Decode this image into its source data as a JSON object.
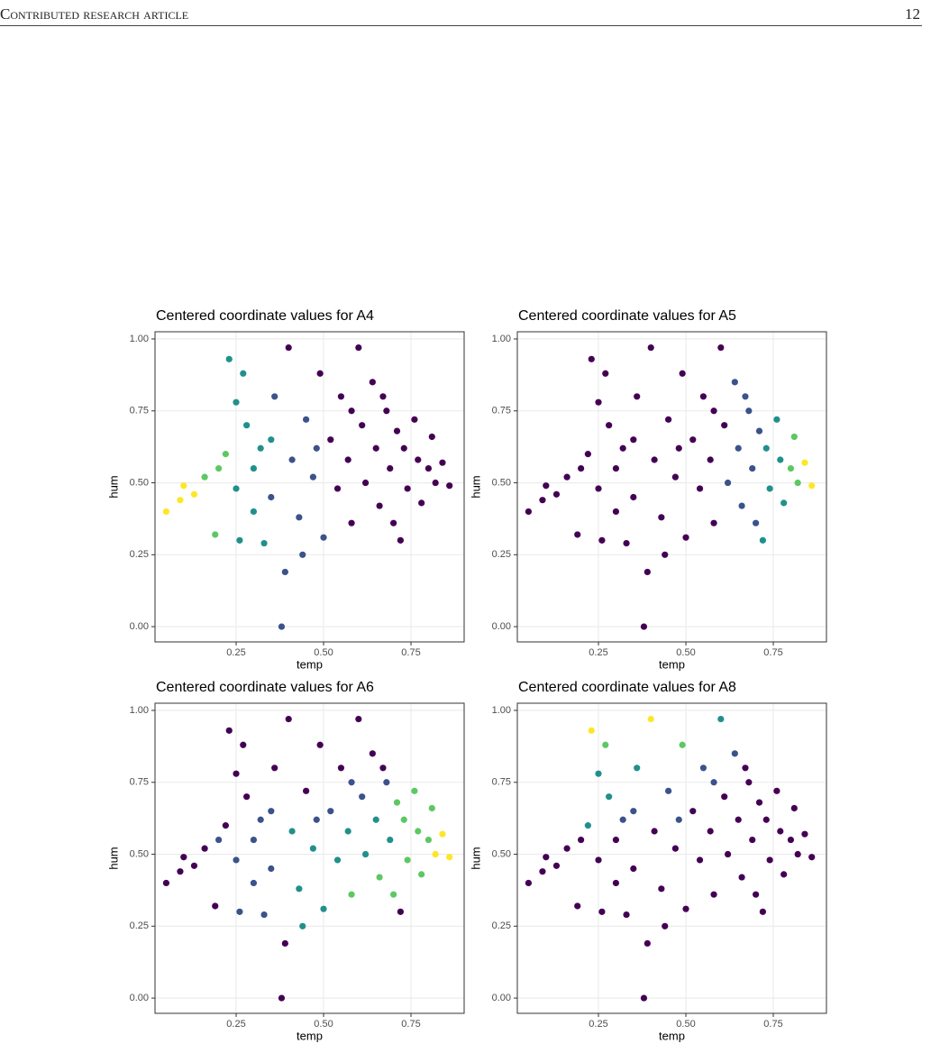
{
  "header": {
    "section": "Contributed research article",
    "page": "12"
  },
  "chart_data": [
    {
      "type": "scatter",
      "title": "Centered coordinate values for A4",
      "x_label": "temp",
      "y_label": "hum",
      "x": [
        0.05,
        0.09,
        0.1,
        0.13,
        0.16,
        0.19,
        0.2,
        0.22,
        0.23,
        0.25,
        0.26,
        0.27,
        0.28,
        0.3,
        0.32,
        0.33,
        0.35,
        0.36,
        0.38,
        0.39,
        0.4,
        0.41,
        0.43,
        0.44,
        0.45,
        0.47,
        0.49,
        0.5,
        0.52,
        0.54,
        0.55,
        0.57,
        0.58,
        0.6,
        0.61,
        0.62,
        0.64,
        0.65,
        0.66,
        0.68,
        0.69,
        0.7,
        0.71,
        0.72,
        0.73,
        0.74,
        0.76,
        0.77,
        0.78,
        0.8,
        0.81,
        0.82,
        0.84,
        0.86,
        0.35,
        0.3,
        0.58,
        0.48,
        0.67,
        0.25
      ],
      "values": [
        0.4,
        0.44,
        0.49,
        0.46,
        0.52,
        0.32,
        0.55,
        0.6,
        0.93,
        0.48,
        0.3,
        0.88,
        0.7,
        0.55,
        0.62,
        0.29,
        0.45,
        0.8,
        0.0,
        0.19,
        0.97,
        0.58,
        0.38,
        0.25,
        0.72,
        0.52,
        0.88,
        0.31,
        0.65,
        0.48,
        0.8,
        0.58,
        0.36,
        0.97,
        0.7,
        0.5,
        0.85,
        0.62,
        0.42,
        0.75,
        0.55,
        0.36,
        0.68,
        0.3,
        0.62,
        0.48,
        0.72,
        0.58,
        0.43,
        0.55,
        0.66,
        0.5,
        0.57,
        0.49,
        0.65,
        0.4,
        0.75,
        0.62,
        0.8,
        0.78
      ],
      "colors": [
        "#fde725",
        "#fde725",
        "#fde725",
        "#fde725",
        "#5dc863",
        "#5dc863",
        "#5dc863",
        "#5dc863",
        "#21908c",
        "#21908c",
        "#21908c",
        "#21908c",
        "#21908c",
        "#21908c",
        "#21908c",
        "#21908c",
        "#3b528b",
        "#3b528b",
        "#3b528b",
        "#3b528b",
        "#440154",
        "#3b528b",
        "#3b528b",
        "#3b528b",
        "#3b528b",
        "#3b528b",
        "#440154",
        "#3b528b",
        "#440154",
        "#440154",
        "#440154",
        "#440154",
        "#440154",
        "#440154",
        "#440154",
        "#440154",
        "#440154",
        "#440154",
        "#440154",
        "#440154",
        "#440154",
        "#440154",
        "#440154",
        "#440154",
        "#440154",
        "#440154",
        "#440154",
        "#440154",
        "#440154",
        "#440154",
        "#440154",
        "#440154",
        "#440154",
        "#440154",
        "#21908c",
        "#21908c",
        "#440154",
        "#3b528b",
        "#440154",
        "#21908c"
      ],
      "xlim": [
        0.018,
        0.902
      ],
      "ylim": [
        -0.053,
        1.025
      ],
      "xticks": [
        {
          "value": 0.25,
          "label": "0.25"
        },
        {
          "value": 0.5,
          "label": "0.50"
        },
        {
          "value": 0.75,
          "label": "0.75"
        }
      ],
      "yticks": [
        {
          "value": 0,
          "label": "0.00"
        },
        {
          "value": 0.25,
          "label": "0.25"
        },
        {
          "value": 0.5,
          "label": "0.50"
        },
        {
          "value": 0.75,
          "label": "0.75"
        },
        {
          "value": 1,
          "label": "1.00"
        }
      ],
      "grid": true
    },
    {
      "type": "scatter",
      "title": "Centered coordinate values for A5",
      "x_label": "temp",
      "y_label": "hum",
      "x": [
        0.05,
        0.09,
        0.1,
        0.13,
        0.16,
        0.19,
        0.2,
        0.22,
        0.23,
        0.25,
        0.26,
        0.27,
        0.28,
        0.3,
        0.32,
        0.33,
        0.35,
        0.36,
        0.38,
        0.39,
        0.4,
        0.41,
        0.43,
        0.44,
        0.45,
        0.47,
        0.49,
        0.5,
        0.52,
        0.54,
        0.55,
        0.57,
        0.58,
        0.6,
        0.61,
        0.62,
        0.64,
        0.65,
        0.66,
        0.68,
        0.69,
        0.7,
        0.71,
        0.72,
        0.73,
        0.74,
        0.76,
        0.77,
        0.78,
        0.8,
        0.81,
        0.82,
        0.84,
        0.86,
        0.35,
        0.3,
        0.58,
        0.48,
        0.67,
        0.25
      ],
      "values": [
        0.4,
        0.44,
        0.49,
        0.46,
        0.52,
        0.32,
        0.55,
        0.6,
        0.93,
        0.48,
        0.3,
        0.88,
        0.7,
        0.55,
        0.62,
        0.29,
        0.45,
        0.8,
        0.0,
        0.19,
        0.97,
        0.58,
        0.38,
        0.25,
        0.72,
        0.52,
        0.88,
        0.31,
        0.65,
        0.48,
        0.8,
        0.58,
        0.36,
        0.97,
        0.7,
        0.5,
        0.85,
        0.62,
        0.42,
        0.75,
        0.55,
        0.36,
        0.68,
        0.3,
        0.62,
        0.48,
        0.72,
        0.58,
        0.43,
        0.55,
        0.66,
        0.5,
        0.57,
        0.49,
        0.65,
        0.4,
        0.75,
        0.62,
        0.8,
        0.78
      ],
      "colors": [
        "#440154",
        "#440154",
        "#440154",
        "#440154",
        "#440154",
        "#440154",
        "#440154",
        "#440154",
        "#440154",
        "#440154",
        "#440154",
        "#440154",
        "#440154",
        "#440154",
        "#440154",
        "#440154",
        "#440154",
        "#440154",
        "#440154",
        "#440154",
        "#440154",
        "#440154",
        "#440154",
        "#440154",
        "#440154",
        "#440154",
        "#440154",
        "#440154",
        "#440154",
        "#440154",
        "#440154",
        "#440154",
        "#440154",
        "#440154",
        "#440154",
        "#3b528b",
        "#3b528b",
        "#3b528b",
        "#3b528b",
        "#3b528b",
        "#3b528b",
        "#3b528b",
        "#3b528b",
        "#21908c",
        "#21908c",
        "#21908c",
        "#21908c",
        "#21908c",
        "#21908c",
        "#5dc863",
        "#5dc863",
        "#5dc863",
        "#fde725",
        "#fde725",
        "#440154",
        "#440154",
        "#440154",
        "#440154",
        "#3b528b",
        "#440154"
      ],
      "xlim": [
        0.018,
        0.902
      ],
      "ylim": [
        -0.053,
        1.025
      ],
      "xticks": [
        {
          "value": 0.25,
          "label": "0.25"
        },
        {
          "value": 0.5,
          "label": "0.50"
        },
        {
          "value": 0.75,
          "label": "0.75"
        }
      ],
      "yticks": [
        {
          "value": 0,
          "label": "0.00"
        },
        {
          "value": 0.25,
          "label": "0.25"
        },
        {
          "value": 0.5,
          "label": "0.50"
        },
        {
          "value": 0.75,
          "label": "0.75"
        },
        {
          "value": 1,
          "label": "1.00"
        }
      ],
      "grid": true
    },
    {
      "type": "scatter",
      "title": "Centered coordinate values for A6",
      "x_label": "temp",
      "y_label": "hum",
      "x": [
        0.05,
        0.09,
        0.1,
        0.13,
        0.16,
        0.19,
        0.2,
        0.22,
        0.23,
        0.25,
        0.26,
        0.27,
        0.28,
        0.3,
        0.32,
        0.33,
        0.35,
        0.36,
        0.38,
        0.39,
        0.4,
        0.41,
        0.43,
        0.44,
        0.45,
        0.47,
        0.49,
        0.5,
        0.52,
        0.54,
        0.55,
        0.57,
        0.58,
        0.6,
        0.61,
        0.62,
        0.64,
        0.65,
        0.66,
        0.68,
        0.69,
        0.7,
        0.71,
        0.72,
        0.73,
        0.74,
        0.76,
        0.77,
        0.78,
        0.8,
        0.81,
        0.82,
        0.84,
        0.86,
        0.35,
        0.3,
        0.58,
        0.48,
        0.67,
        0.25
      ],
      "values": [
        0.4,
        0.44,
        0.49,
        0.46,
        0.52,
        0.32,
        0.55,
        0.6,
        0.93,
        0.48,
        0.3,
        0.88,
        0.7,
        0.55,
        0.62,
        0.29,
        0.45,
        0.8,
        0.0,
        0.19,
        0.97,
        0.58,
        0.38,
        0.25,
        0.72,
        0.52,
        0.88,
        0.31,
        0.65,
        0.48,
        0.8,
        0.58,
        0.36,
        0.97,
        0.7,
        0.5,
        0.85,
        0.62,
        0.42,
        0.75,
        0.55,
        0.36,
        0.68,
        0.3,
        0.62,
        0.48,
        0.72,
        0.58,
        0.43,
        0.55,
        0.66,
        0.5,
        0.57,
        0.49,
        0.65,
        0.4,
        0.75,
        0.62,
        0.8,
        0.78
      ],
      "colors": [
        "#440154",
        "#440154",
        "#440154",
        "#440154",
        "#440154",
        "#440154",
        "#3b528b",
        "#440154",
        "#440154",
        "#3b528b",
        "#3b528b",
        "#440154",
        "#440154",
        "#3b528b",
        "#3b528b",
        "#3b528b",
        "#3b528b",
        "#440154",
        "#440154",
        "#440154",
        "#440154",
        "#21908c",
        "#21908c",
        "#21908c",
        "#440154",
        "#21908c",
        "#440154",
        "#21908c",
        "#3b528b",
        "#21908c",
        "#440154",
        "#21908c",
        "#5dc863",
        "#440154",
        "#3b528b",
        "#21908c",
        "#440154",
        "#21908c",
        "#5dc863",
        "#3b528b",
        "#21908c",
        "#5dc863",
        "#5dc863",
        "#440154",
        "#5dc863",
        "#5dc863",
        "#5dc863",
        "#5dc863",
        "#5dc863",
        "#5dc863",
        "#5dc863",
        "#fde725",
        "#fde725",
        "#fde725",
        "#3b528b",
        "#3b528b",
        "#3b528b",
        "#3b528b",
        "#440154",
        "#440154"
      ],
      "xlim": [
        0.018,
        0.902
      ],
      "ylim": [
        -0.053,
        1.025
      ],
      "xticks": [
        {
          "value": 0.25,
          "label": "0.25"
        },
        {
          "value": 0.5,
          "label": "0.50"
        },
        {
          "value": 0.75,
          "label": "0.75"
        }
      ],
      "yticks": [
        {
          "value": 0,
          "label": "0.00"
        },
        {
          "value": 0.25,
          "label": "0.25"
        },
        {
          "value": 0.5,
          "label": "0.50"
        },
        {
          "value": 0.75,
          "label": "0.75"
        },
        {
          "value": 1,
          "label": "1.00"
        }
      ],
      "grid": true
    },
    {
      "type": "scatter",
      "title": "Centered coordinate values for A8",
      "x_label": "temp",
      "y_label": "hum",
      "x": [
        0.05,
        0.09,
        0.1,
        0.13,
        0.16,
        0.19,
        0.2,
        0.22,
        0.23,
        0.25,
        0.26,
        0.27,
        0.28,
        0.3,
        0.32,
        0.33,
        0.35,
        0.36,
        0.38,
        0.39,
        0.4,
        0.41,
        0.43,
        0.44,
        0.45,
        0.47,
        0.49,
        0.5,
        0.52,
        0.54,
        0.55,
        0.57,
        0.58,
        0.6,
        0.61,
        0.62,
        0.64,
        0.65,
        0.66,
        0.68,
        0.69,
        0.7,
        0.71,
        0.72,
        0.73,
        0.74,
        0.76,
        0.77,
        0.78,
        0.8,
        0.81,
        0.82,
        0.84,
        0.86,
        0.35,
        0.3,
        0.58,
        0.48,
        0.67,
        0.25
      ],
      "values": [
        0.4,
        0.44,
        0.49,
        0.46,
        0.52,
        0.32,
        0.55,
        0.6,
        0.93,
        0.48,
        0.3,
        0.88,
        0.7,
        0.55,
        0.62,
        0.29,
        0.45,
        0.8,
        0.0,
        0.19,
        0.97,
        0.58,
        0.38,
        0.25,
        0.72,
        0.52,
        0.88,
        0.31,
        0.65,
        0.48,
        0.8,
        0.58,
        0.36,
        0.97,
        0.7,
        0.5,
        0.85,
        0.62,
        0.42,
        0.75,
        0.55,
        0.36,
        0.68,
        0.3,
        0.62,
        0.48,
        0.72,
        0.58,
        0.43,
        0.55,
        0.66,
        0.5,
        0.57,
        0.49,
        0.65,
        0.4,
        0.75,
        0.62,
        0.8,
        0.78
      ],
      "colors": [
        "#440154",
        "#440154",
        "#440154",
        "#440154",
        "#440154",
        "#440154",
        "#440154",
        "#21908c",
        "#fde725",
        "#440154",
        "#440154",
        "#5dc863",
        "#21908c",
        "#440154",
        "#3b528b",
        "#440154",
        "#440154",
        "#21908c",
        "#440154",
        "#440154",
        "#fde725",
        "#440154",
        "#440154",
        "#440154",
        "#3b528b",
        "#440154",
        "#5dc863",
        "#440154",
        "#440154",
        "#440154",
        "#3b528b",
        "#440154",
        "#440154",
        "#21908c",
        "#440154",
        "#440154",
        "#3b528b",
        "#440154",
        "#440154",
        "#440154",
        "#440154",
        "#440154",
        "#440154",
        "#440154",
        "#440154",
        "#440154",
        "#440154",
        "#440154",
        "#440154",
        "#440154",
        "#440154",
        "#440154",
        "#440154",
        "#440154",
        "#3b528b",
        "#440154",
        "#3b528b",
        "#3b528b",
        "#440154",
        "#21908c"
      ],
      "xlim": [
        0.018,
        0.902
      ],
      "ylim": [
        -0.053,
        1.025
      ],
      "xticks": [
        {
          "value": 0.25,
          "label": "0.25"
        },
        {
          "value": 0.5,
          "label": "0.50"
        },
        {
          "value": 0.75,
          "label": "0.75"
        }
      ],
      "yticks": [
        {
          "value": 0,
          "label": "0.00"
        },
        {
          "value": 0.25,
          "label": "0.25"
        },
        {
          "value": 0.5,
          "label": "0.50"
        },
        {
          "value": 0.75,
          "label": "0.75"
        },
        {
          "value": 1,
          "label": "1.00"
        }
      ],
      "grid": true
    }
  ]
}
